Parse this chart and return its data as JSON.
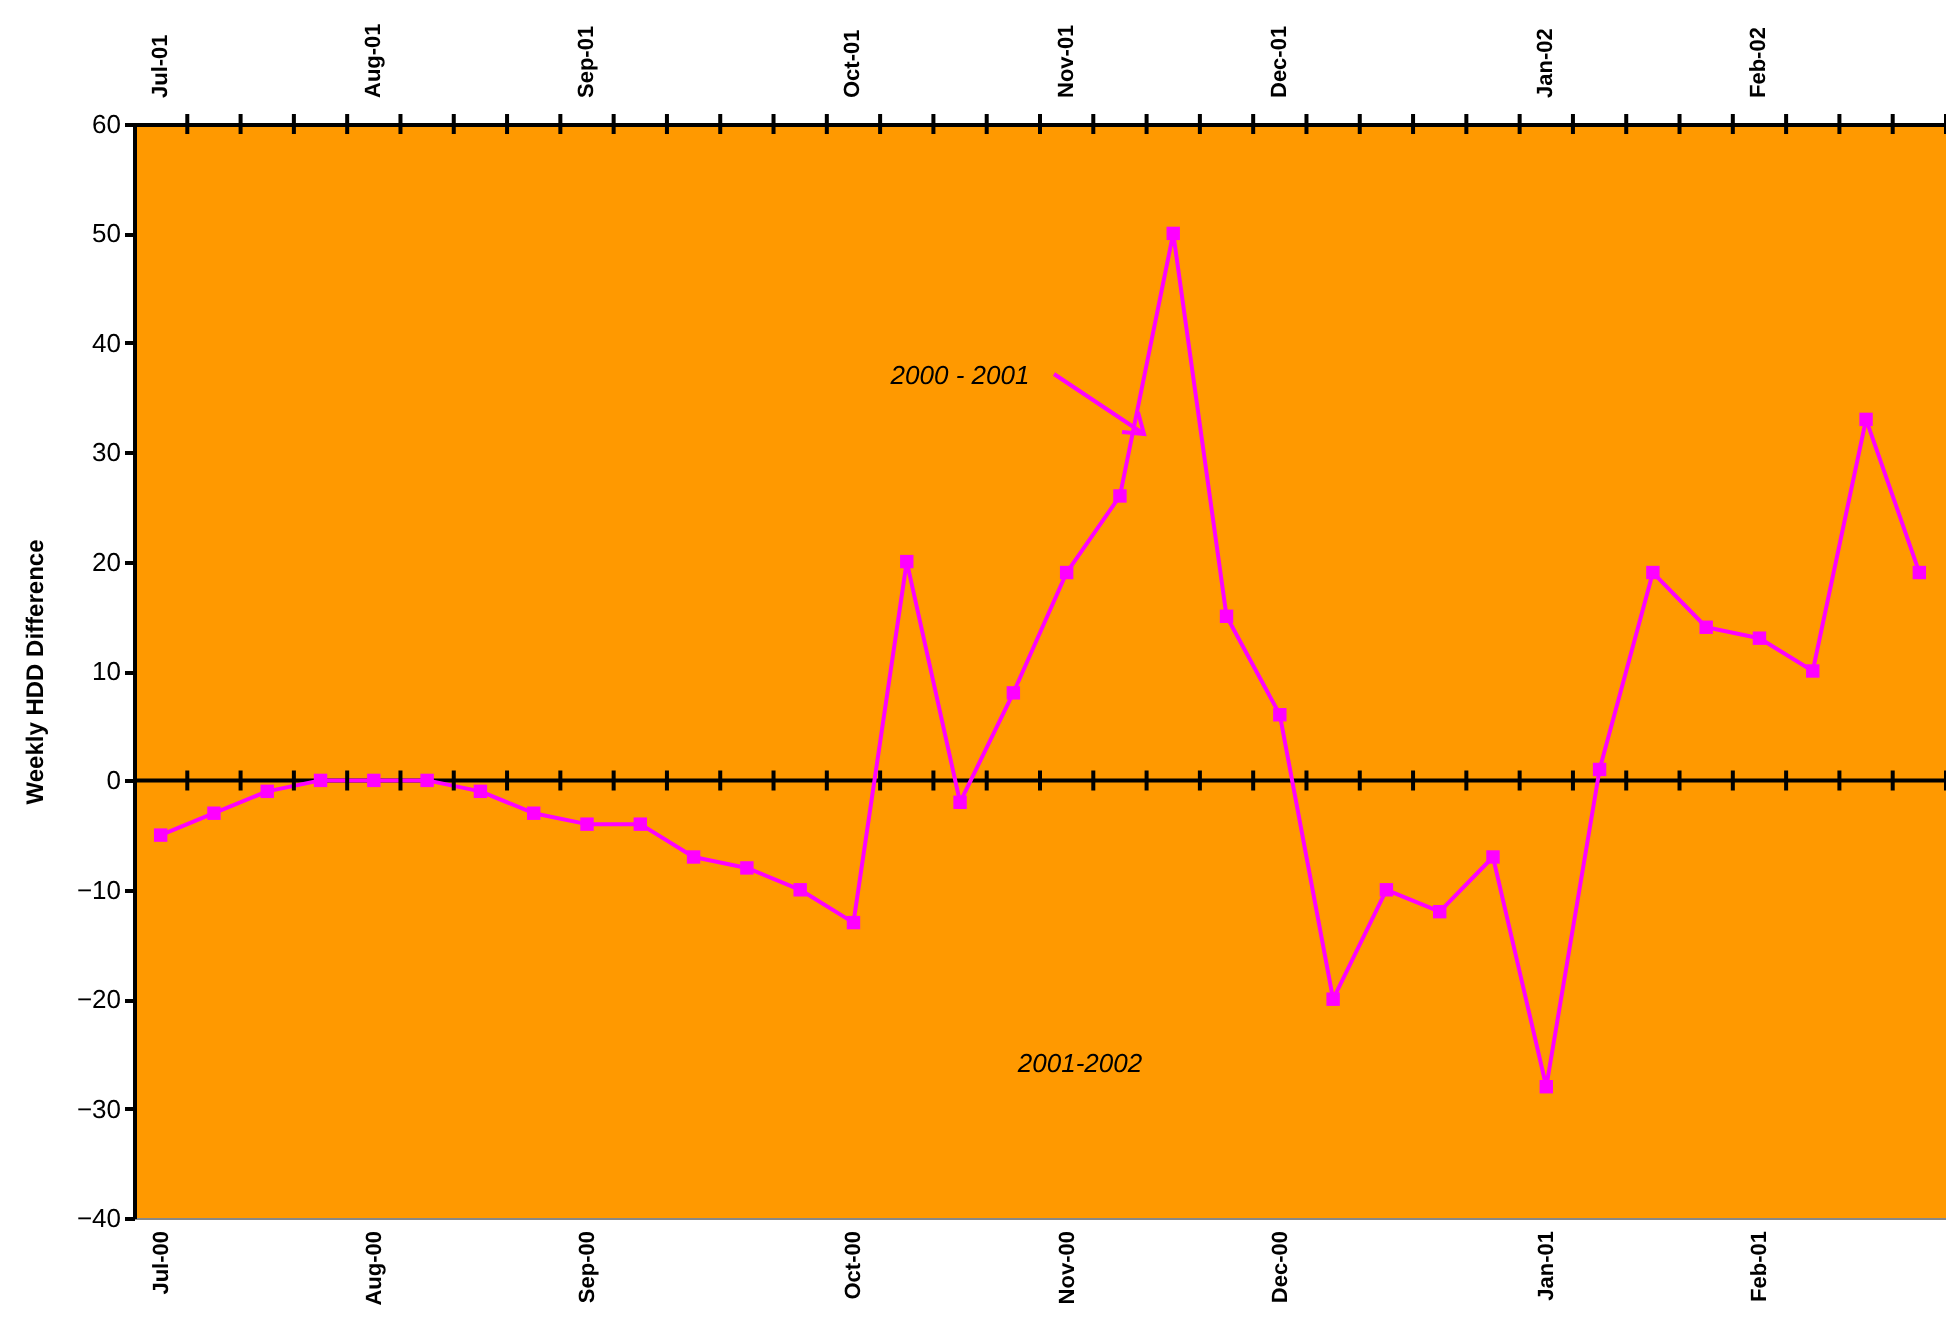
{
  "chart_data": {
    "type": "line",
    "ylabel": "Weekly HDD Difference",
    "categories": [
      "Jul-00",
      null,
      null,
      null,
      "Aug-00",
      null,
      null,
      null,
      "Sep-00",
      null,
      null,
      null,
      null,
      "Oct-00",
      null,
      null,
      null,
      "Nov-00",
      null,
      null,
      null,
      "Dec-00",
      null,
      null,
      null,
      null,
      "Jan-01",
      null,
      null,
      null,
      "Feb-01",
      null,
      null,
      null
    ],
    "series": [
      {
        "color": "#ff00ff",
        "values": [
          -5,
          -3,
          -1,
          0,
          0,
          0,
          -1,
          -3,
          -4,
          -4,
          -7,
          -8,
          -10,
          -13,
          20,
          -2,
          8,
          19,
          26,
          50,
          15,
          6,
          -20,
          -10,
          -12,
          -7,
          -28,
          1,
          19,
          14,
          13,
          10,
          33,
          19
        ]
      }
    ],
    "ylim": [
      -40,
      60
    ],
    "yticks": [
      -40,
      -30,
      -20,
      -10,
      0,
      10,
      20,
      30,
      40,
      50,
      60
    ],
    "ref_lines": [
      {
        "axis": "y",
        "value": 0,
        "color": "#000000"
      }
    ],
    "marker": "square",
    "annotations": [
      "Jul-01",
      "Aug-01",
      "Sep-01",
      "Oct-01",
      "Nov-01",
      "Dec-01",
      "Jan-02",
      "Feb-02",
      "2000 - 2001",
      "2001-2002"
    ]
  }
}
